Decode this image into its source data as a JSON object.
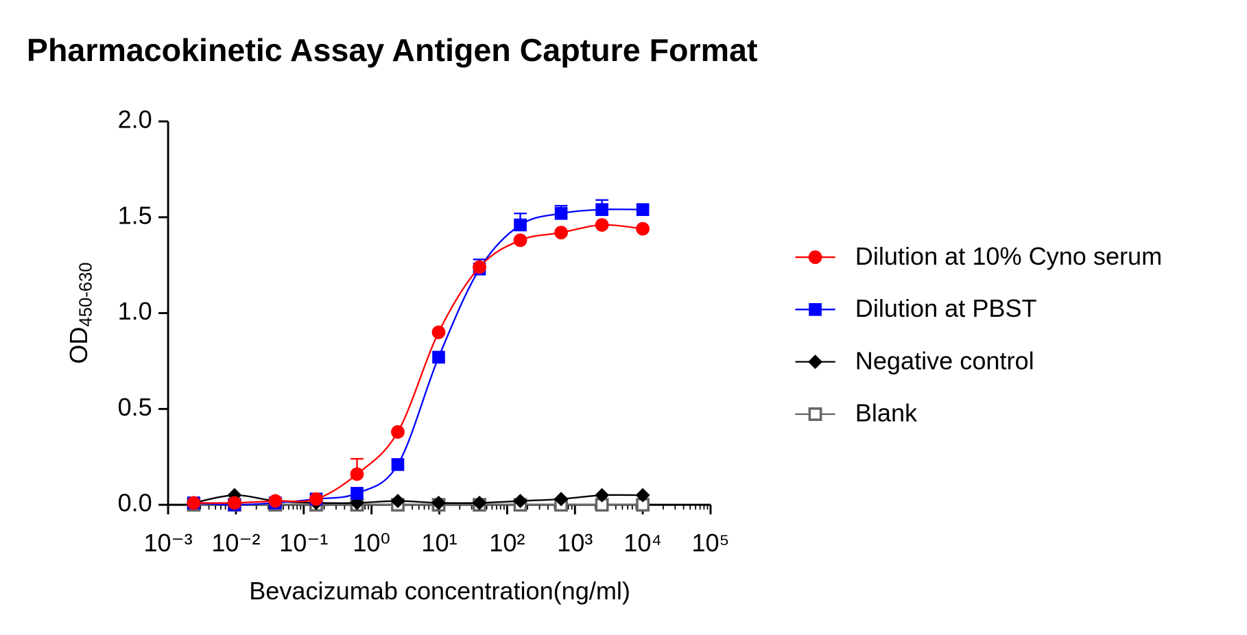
{
  "chart_data": {
    "type": "line",
    "title": "Pharmacokinetic Assay Antigen Capture Format",
    "x_label": "Bevacizumab concentration(ng/ml)",
    "y_label": "OD",
    "y_label_subscript": "450-630",
    "x_scale": "log",
    "x": [
      0.002384185791015625,
      0.0095367431640625,
      0.03814697265625,
      0.152587890625,
      0.6103515625,
      2.44140625,
      9.765625,
      39.0625,
      156.25,
      625,
      2500,
      10000
    ],
    "series": [
      {
        "name": "Dilution at 10% Cyno serum",
        "color": "#ff0000",
        "marker": "circle",
        "values": [
          0.01,
          0.01,
          0.02,
          0.03,
          0.16,
          0.38,
          0.9,
          1.24,
          1.38,
          1.42,
          1.46,
          1.44
        ],
        "errors": [
          null,
          null,
          null,
          null,
          0.08,
          null,
          null,
          null,
          null,
          null,
          null,
          null
        ]
      },
      {
        "name": "Dilution at PBST",
        "color": "#0000ff",
        "marker": "square",
        "values": [
          0.01,
          0.0,
          0.01,
          0.03,
          0.06,
          0.21,
          0.77,
          1.23,
          1.46,
          1.52,
          1.54,
          1.54
        ],
        "errors": [
          null,
          null,
          null,
          null,
          null,
          null,
          null,
          0.05,
          0.06,
          0.04,
          0.05,
          null
        ]
      },
      {
        "name": "Negative control",
        "color": "#000000",
        "marker": "diamond",
        "values": [
          0.01,
          0.05,
          0.02,
          0.01,
          0.01,
          0.02,
          0.01,
          0.01,
          0.02,
          0.03,
          0.05,
          0.05
        ]
      },
      {
        "name": "Blank",
        "color": "#666666",
        "marker": "open-square",
        "values": [
          0,
          0,
          0,
          0,
          0,
          0,
          0,
          0,
          0,
          0,
          0,
          0
        ]
      }
    ],
    "xlim": [
      0.001,
      100000
    ],
    "xticks": [
      {
        "value": 0.001,
        "label": "10⁻³"
      },
      {
        "value": 0.01,
        "label": "10⁻²"
      },
      {
        "value": 0.1,
        "label": "10⁻¹"
      },
      {
        "value": 1,
        "label": "10⁰"
      },
      {
        "value": 10,
        "label": "10¹"
      },
      {
        "value": 100,
        "label": "10²"
      },
      {
        "value": 1000,
        "label": "10³"
      },
      {
        "value": 10000,
        "label": "10⁴"
      },
      {
        "value": 100000,
        "label": "10⁵"
      }
    ],
    "ylim": [
      0,
      2
    ],
    "yticks": [
      {
        "value": 0,
        "label": "0.0"
      },
      {
        "value": 0.5,
        "label": "0.5"
      },
      {
        "value": 1,
        "label": "1.0"
      },
      {
        "value": 1.5,
        "label": "1.5"
      },
      {
        "value": 2,
        "label": "2.0"
      }
    ],
    "legend_position": "right"
  }
}
